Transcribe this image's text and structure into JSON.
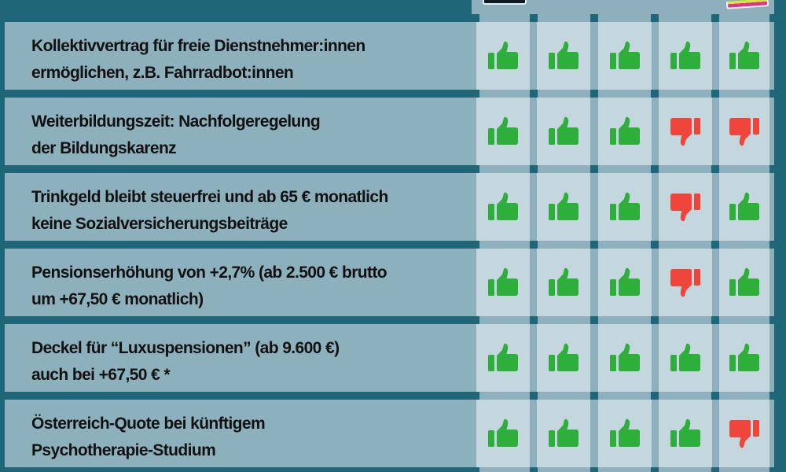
{
  "colors": {
    "background": "#1f6678",
    "label_bg": "#8db0bd",
    "cell_bg": "#c4d7de",
    "grid_line": "#8eb0bd",
    "thumbs_up": "#2eaf3c",
    "thumbs_down": "#f0453a"
  },
  "header": {
    "columns": [
      {
        "logo": "party-logo-1"
      },
      {
        "logo": ""
      },
      {
        "logo": ""
      },
      {
        "logo": ""
      },
      {
        "logo": "party-logo-5"
      }
    ]
  },
  "rows": [
    {
      "line1": "Kollektivvertrag für freie Dienstnehmer:innen",
      "line2": "ermöglichen, z.B. Fahrradbot:innen",
      "votes": [
        "up",
        "up",
        "up",
        "up",
        "up"
      ]
    },
    {
      "line1": "Weiterbildungszeit: Nachfolgeregelung",
      "line2": "der Bildungskarenz",
      "votes": [
        "up",
        "up",
        "up",
        "down",
        "down"
      ]
    },
    {
      "line1": "Trinkgeld bleibt steuerfrei und ab 65 € monatlich",
      "line2": "keine Sozialversicherungsbeiträge",
      "votes": [
        "up",
        "up",
        "up",
        "down",
        "up"
      ]
    },
    {
      "line1": "Pensionserhöhung von +2,7% (ab 2.500 € brutto",
      "line2": "um +67,50 € monatlich)",
      "votes": [
        "up",
        "up",
        "up",
        "down",
        "up"
      ]
    },
    {
      "line1": "Deckel für “Luxuspensionen” (ab 9.600 €)",
      "line2": "auch bei +67,50 € *",
      "votes": [
        "up",
        "up",
        "up",
        "up",
        "up"
      ]
    },
    {
      "line1": "Österreich-Quote bei künftigem",
      "line2": "Psychotherapie-Studium",
      "votes": [
        "up",
        "up",
        "up",
        "up",
        "down"
      ]
    }
  ]
}
